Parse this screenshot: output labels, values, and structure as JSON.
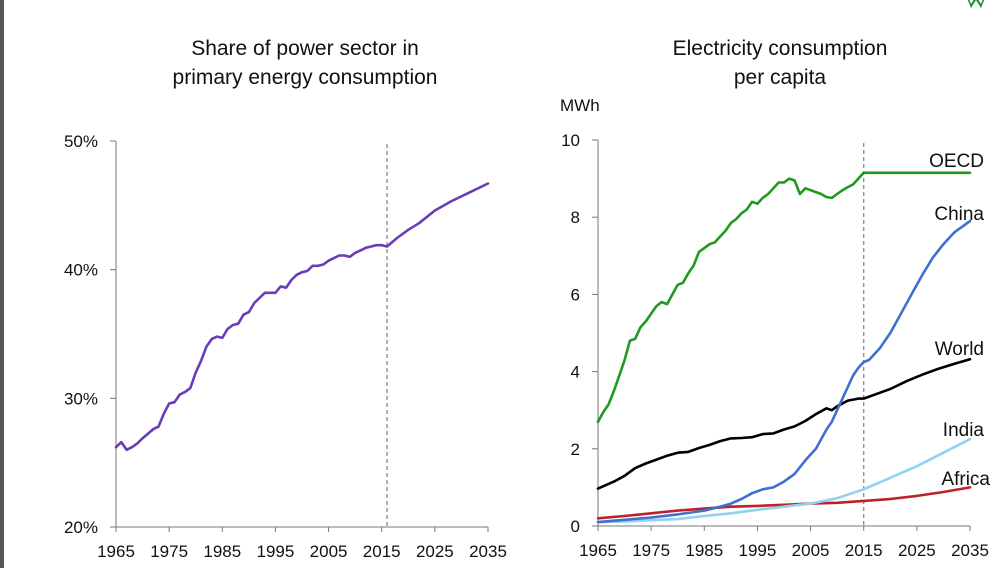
{
  "colors": {
    "axis": "#777777",
    "divider": "#888888",
    "text": "#111111",
    "logo": "#1a8a3a"
  },
  "chart_data": [
    {
      "type": "line",
      "title": "Share of power sector in primary energy consumption",
      "title_lines": [
        "Share of power sector in",
        "primary energy consumption"
      ],
      "ylabel": "",
      "xlabel": "",
      "xlim": [
        1965,
        2035
      ],
      "ylim": [
        20,
        50
      ],
      "x_ticks": [
        1965,
        1975,
        1985,
        1995,
        2005,
        2015,
        2025,
        2035
      ],
      "y_ticks": [
        20,
        30,
        40,
        50
      ],
      "y_tick_labels": [
        "20%",
        "30%",
        "40%",
        "50%"
      ],
      "projection_start": 2016,
      "grid": false,
      "series": [
        {
          "color": "#6a3db8",
          "x": [
            1965,
            1966,
            1967,
            1968,
            1969,
            1970,
            1972,
            1973,
            1974,
            1975,
            1976,
            1977,
            1978,
            1979,
            1980,
            1981,
            1982,
            1983,
            1984,
            1985,
            1986,
            1987,
            1988,
            1989,
            1990,
            1991,
            1992,
            1993,
            1994,
            1995,
            1996,
            1997,
            1998,
            1999,
            2000,
            2001,
            2002,
            2003,
            2004,
            2005,
            2006,
            2007,
            2008,
            2009,
            2010,
            2011,
            2012,
            2013,
            2014,
            2015,
            2016,
            2018,
            2020,
            2022,
            2025,
            2028,
            2031,
            2035
          ],
          "values": [
            26.2,
            26.6,
            26.0,
            26.2,
            26.5,
            26.9,
            27.6,
            27.8,
            28.8,
            29.6,
            29.7,
            30.3,
            30.5,
            30.8,
            32.0,
            32.9,
            34.0,
            34.6,
            34.8,
            34.7,
            35.4,
            35.7,
            35.8,
            36.5,
            36.7,
            37.4,
            37.8,
            38.2,
            38.2,
            38.2,
            38.7,
            38.6,
            39.2,
            39.6,
            39.8,
            39.9,
            40.3,
            40.3,
            40.4,
            40.7,
            40.9,
            41.1,
            41.1,
            41.0,
            41.3,
            41.5,
            41.7,
            41.8,
            41.9,
            41.9,
            41.8,
            42.5,
            43.1,
            43.6,
            44.6,
            45.3,
            45.9,
            46.7
          ]
        }
      ]
    },
    {
      "type": "line",
      "title": "Electricity consumption per capita",
      "title_lines": [
        "Electricity consumption",
        "per capita"
      ],
      "ylabel": "MWh",
      "xlabel": "",
      "xlim": [
        1965,
        2035
      ],
      "ylim": [
        0,
        10
      ],
      "x_ticks": [
        1965,
        1975,
        1985,
        1995,
        2005,
        2015,
        2025,
        2035
      ],
      "y_ticks": [
        0,
        2,
        4,
        6,
        8,
        10
      ],
      "y_tick_labels": [
        "0",
        "2",
        "4",
        "6",
        "8",
        "10"
      ],
      "projection_start": 2015,
      "grid": false,
      "series": [
        {
          "name": "OECD",
          "color": "#1f9a1f",
          "x": [
            1965,
            1966,
            1967,
            1968,
            1969,
            1970,
            1971,
            1972,
            1973,
            1974,
            1975,
            1976,
            1977,
            1978,
            1979,
            1980,
            1981,
            1982,
            1983,
            1984,
            1985,
            1986,
            1987,
            1988,
            1989,
            1990,
            1991,
            1992,
            1993,
            1994,
            1995,
            1996,
            1997,
            1998,
            1999,
            2000,
            2001,
            2002,
            2003,
            2004,
            2005,
            2006,
            2007,
            2008,
            2009,
            2010,
            2011,
            2012,
            2013,
            2014,
            2015,
            2018,
            2021,
            2025,
            2030,
            2035
          ],
          "values": [
            2.7,
            2.95,
            3.15,
            3.5,
            3.9,
            4.3,
            4.8,
            4.85,
            5.15,
            5.3,
            5.5,
            5.7,
            5.8,
            5.75,
            6.0,
            6.25,
            6.3,
            6.55,
            6.75,
            7.1,
            7.2,
            7.3,
            7.35,
            7.5,
            7.65,
            7.85,
            7.95,
            8.1,
            8.2,
            8.4,
            8.35,
            8.5,
            8.6,
            8.75,
            8.9,
            8.9,
            9.0,
            8.95,
            8.6,
            8.75,
            8.7,
            8.65,
            8.6,
            8.52,
            8.5,
            8.6,
            8.7,
            8.78,
            8.85,
            9.0,
            9.15,
            9.15,
            9.15,
            9.15,
            9.15,
            9.15
          ]
        },
        {
          "name": "China",
          "color": "#3f6fd0",
          "x": [
            1965,
            1970,
            1975,
            1980,
            1985,
            1988,
            1990,
            1992,
            1994,
            1996,
            1998,
            2000,
            2002,
            2004,
            2006,
            2008,
            2009,
            2010,
            2011,
            2012,
            2013,
            2014,
            2015,
            2016,
            2018,
            2020,
            2022,
            2024,
            2026,
            2028,
            2030,
            2032,
            2035
          ],
          "values": [
            0.1,
            0.16,
            0.22,
            0.3,
            0.4,
            0.5,
            0.58,
            0.7,
            0.85,
            0.95,
            1.0,
            1.15,
            1.35,
            1.7,
            2.0,
            2.5,
            2.7,
            3.0,
            3.3,
            3.6,
            3.9,
            4.1,
            4.25,
            4.3,
            4.6,
            5.0,
            5.5,
            6.0,
            6.5,
            6.95,
            7.3,
            7.6,
            7.9
          ]
        },
        {
          "name": "World",
          "color": "#000000",
          "x": [
            1965,
            1968,
            1970,
            1972,
            1974,
            1976,
            1978,
            1980,
            1982,
            1984,
            1986,
            1988,
            1990,
            1992,
            1994,
            1996,
            1998,
            2000,
            2002,
            2004,
            2006,
            2008,
            2009,
            2010,
            2012,
            2014,
            2015,
            2018,
            2020,
            2023,
            2026,
            2029,
            2032,
            2035
          ],
          "values": [
            0.97,
            1.15,
            1.3,
            1.5,
            1.62,
            1.72,
            1.82,
            1.9,
            1.92,
            2.02,
            2.1,
            2.2,
            2.27,
            2.28,
            2.3,
            2.38,
            2.4,
            2.5,
            2.58,
            2.72,
            2.9,
            3.05,
            3.0,
            3.1,
            3.25,
            3.3,
            3.3,
            3.45,
            3.55,
            3.75,
            3.92,
            4.07,
            4.2,
            4.32
          ]
        },
        {
          "name": "India",
          "color": "#8fd3f0",
          "x": [
            1965,
            1970,
            1975,
            1980,
            1985,
            1990,
            1995,
            2000,
            2005,
            2010,
            2015,
            2020,
            2025,
            2030,
            2035
          ],
          "values": [
            0.1,
            0.12,
            0.15,
            0.18,
            0.26,
            0.33,
            0.42,
            0.5,
            0.58,
            0.72,
            0.95,
            1.25,
            1.55,
            1.9,
            2.25
          ]
        },
        {
          "name": "Africa",
          "color": "#c0202a",
          "x": [
            1965,
            1970,
            1975,
            1980,
            1985,
            1990,
            1995,
            2000,
            2005,
            2010,
            2015,
            2020,
            2025,
            2030,
            2035
          ],
          "values": [
            0.2,
            0.26,
            0.33,
            0.4,
            0.45,
            0.5,
            0.52,
            0.55,
            0.58,
            0.6,
            0.65,
            0.7,
            0.78,
            0.88,
            1.0
          ]
        }
      ]
    }
  ]
}
